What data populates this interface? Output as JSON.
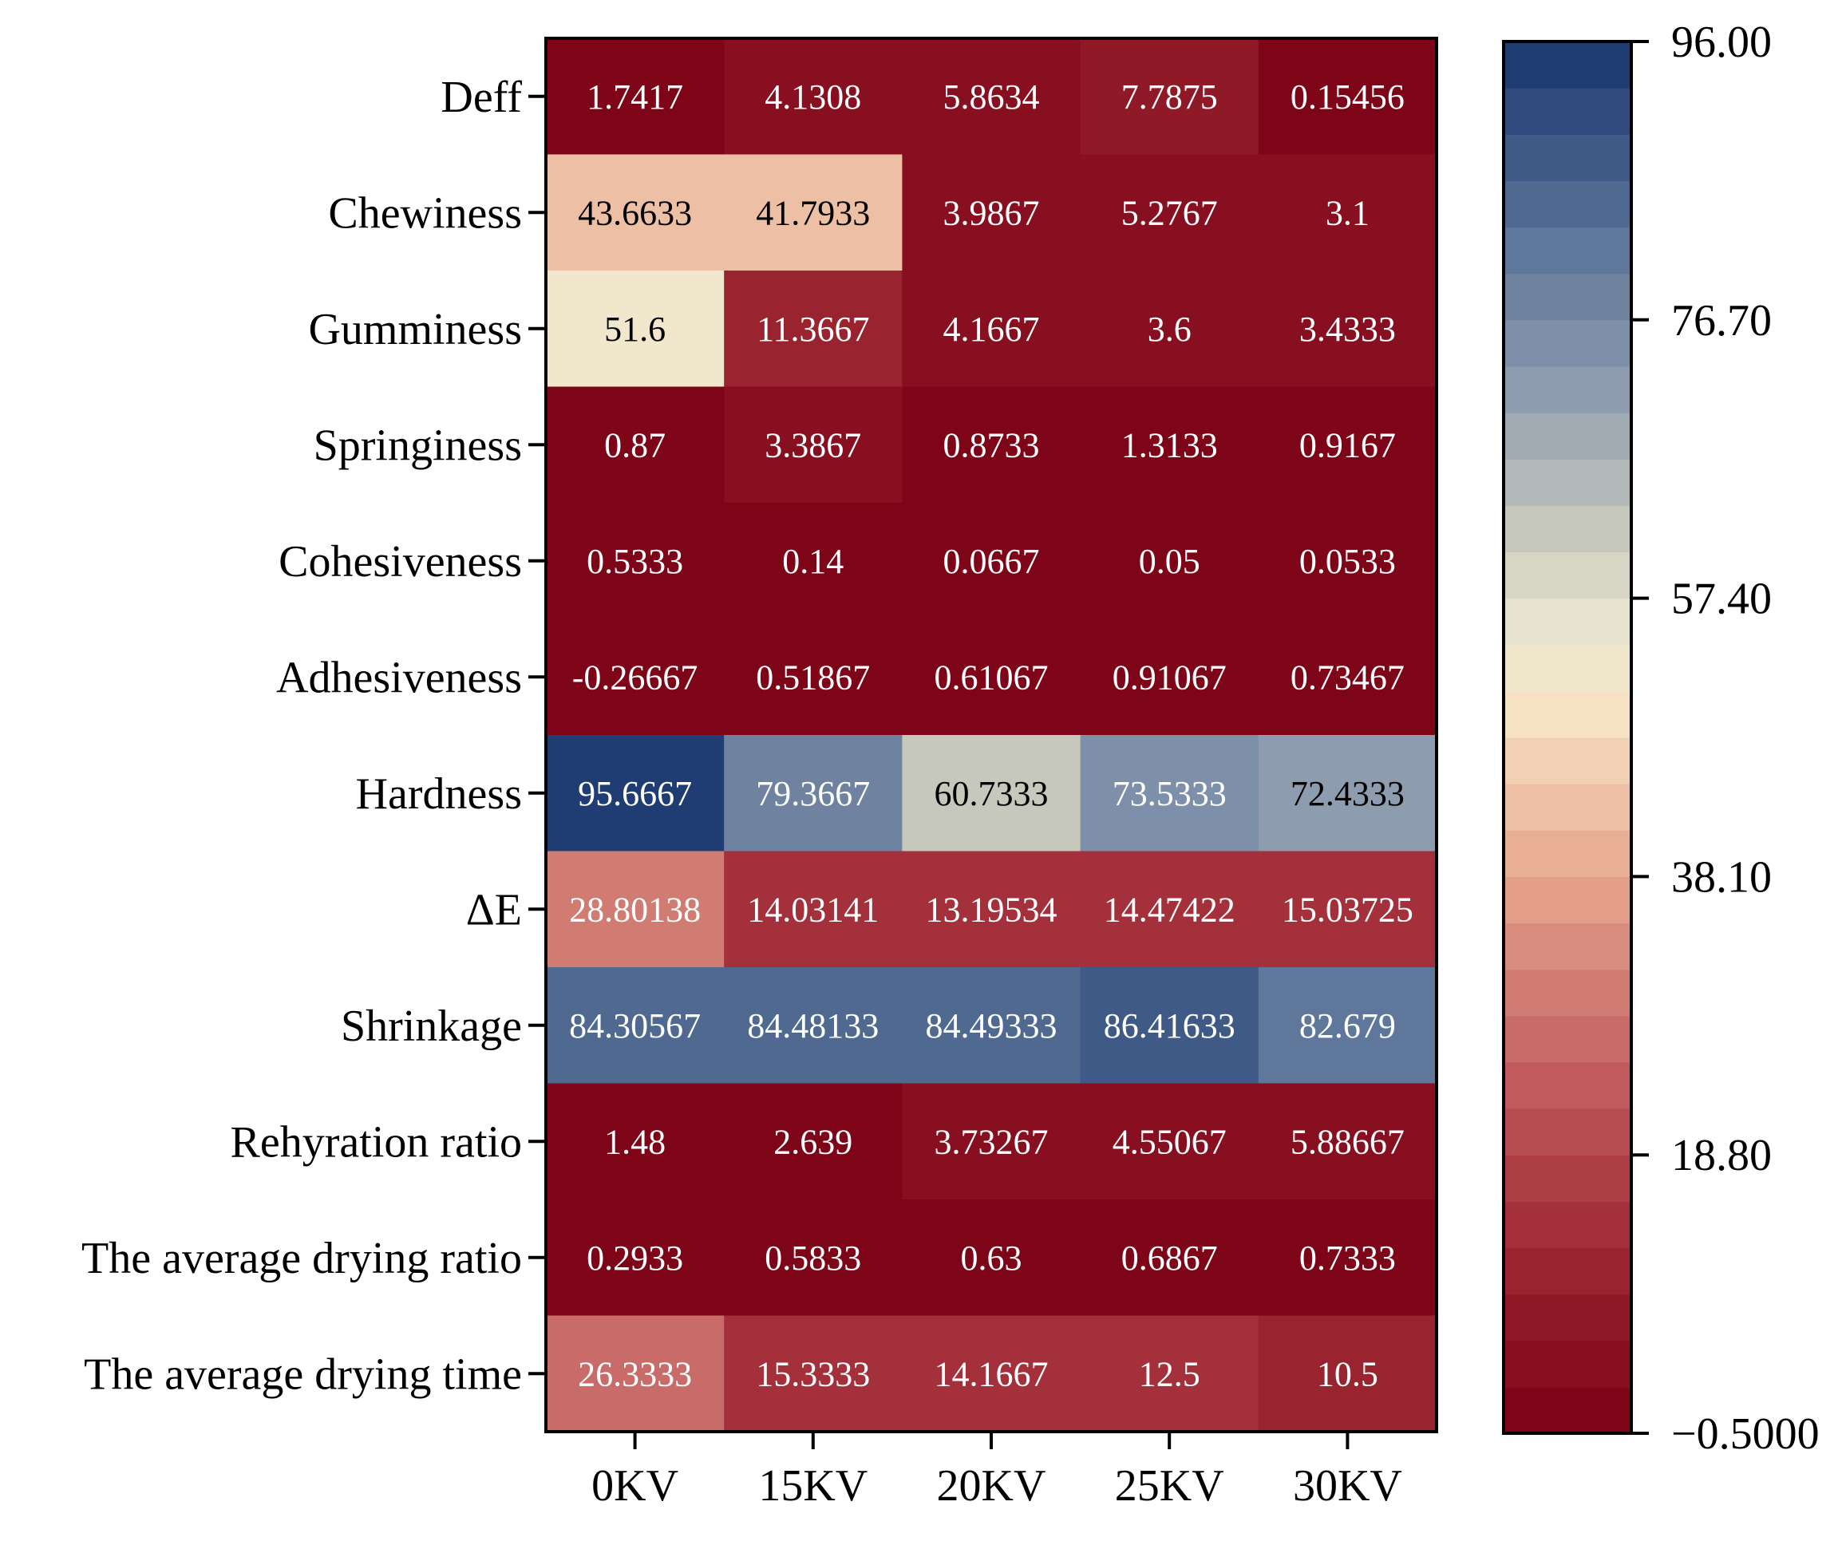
{
  "chart_data": {
    "type": "heatmap",
    "title": "",
    "xlabel": "",
    "ylabel": "",
    "columns": [
      "0KV",
      "15KV",
      "20KV",
      "25KV",
      "30KV"
    ],
    "rows": [
      {
        "label": "Deff",
        "values": [
          1.7417,
          4.1308,
          5.8634,
          7.7875,
          0.15456
        ],
        "display": [
          "1.7417",
          "4.1308",
          "5.8634",
          "7.7875",
          "0.15456"
        ]
      },
      {
        "label": "Chewiness",
        "values": [
          43.6633,
          41.7933,
          3.9867,
          5.2767,
          3.1
        ],
        "display": [
          "43.6633",
          "41.7933",
          "3.9867",
          "5.2767",
          "3.1"
        ]
      },
      {
        "label": "Gumminess",
        "values": [
          51.6,
          11.3667,
          4.1667,
          3.6,
          3.4333
        ],
        "display": [
          "51.6",
          "11.3667",
          "4.1667",
          "3.6",
          "3.4333"
        ]
      },
      {
        "label": "Springiness",
        "values": [
          0.87,
          3.3867,
          0.8733,
          1.3133,
          0.9167
        ],
        "display": [
          "0.87",
          "3.3867",
          "0.8733",
          "1.3133",
          "0.9167"
        ]
      },
      {
        "label": "Cohesiveness",
        "values": [
          0.5333,
          0.14,
          0.0667,
          0.05,
          0.0533
        ],
        "display": [
          "0.5333",
          "0.14",
          "0.0667",
          "0.05",
          "0.0533"
        ]
      },
      {
        "label": "Adhesiveness",
        "values": [
          -0.26667,
          0.51867,
          0.61067,
          0.91067,
          0.73467
        ],
        "display": [
          "-0.26667",
          "0.51867",
          "0.61067",
          "0.91067",
          "0.73467"
        ]
      },
      {
        "label": "Hardness",
        "values": [
          95.6667,
          79.3667,
          60.7333,
          73.5333,
          72.4333
        ],
        "display": [
          "95.6667",
          "79.3667",
          "60.7333",
          "73.5333",
          "72.4333"
        ]
      },
      {
        "label": "ΔE",
        "values": [
          28.80138,
          14.03141,
          13.19534,
          14.47422,
          15.03725
        ],
        "display": [
          "28.80138",
          "14.03141",
          "13.19534",
          "14.47422",
          "15.03725"
        ]
      },
      {
        "label": "Shrinkage",
        "values": [
          84.30567,
          84.48133,
          84.49333,
          86.41633,
          82.679
        ],
        "display": [
          "84.30567",
          "84.48133",
          "84.49333",
          "86.41633",
          "82.679"
        ]
      },
      {
        "label": "Rehyration ratio",
        "values": [
          1.48,
          2.639,
          3.73267,
          4.55067,
          5.88667
        ],
        "display": [
          "1.48",
          "2.639",
          "3.73267",
          "4.55067",
          "5.88667"
        ]
      },
      {
        "label": "The average drying ratio",
        "values": [
          0.2933,
          0.5833,
          0.63,
          0.6867,
          0.7333
        ],
        "display": [
          "0.2933",
          "0.5833",
          "0.63",
          "0.6867",
          "0.7333"
        ]
      },
      {
        "label": "The average drying time",
        "values": [
          26.3333,
          15.3333,
          14.1667,
          12.5,
          10.5
        ],
        "display": [
          "26.3333",
          "15.3333",
          "14.1667",
          "12.5",
          "10.5"
        ]
      }
    ],
    "colorbar": {
      "range": [
        -0.5,
        96.0
      ],
      "levels": 30,
      "ticks": [
        96.0,
        76.7,
        57.4,
        38.1,
        18.8,
        -0.5
      ],
      "tick_labels": [
        "96.00",
        "76.70",
        "57.40",
        "38.10",
        "18.80",
        "−0.5000"
      ]
    },
    "colormap": [
      [
        0.0,
        "#7a0014"
      ],
      [
        0.12,
        "#9a2430"
      ],
      [
        0.25,
        "#c05a5e"
      ],
      [
        0.4,
        "#e6a68e"
      ],
      [
        0.52,
        "#f6e3c4"
      ],
      [
        0.57,
        "#eee9d2"
      ],
      [
        0.65,
        "#c6c8bc"
      ],
      [
        0.75,
        "#8e9cb0"
      ],
      [
        0.87,
        "#566f95"
      ],
      [
        1.0,
        "#17346e"
      ]
    ],
    "cell_text_colors": {
      "dark": "#ffffff",
      "light": "#000000"
    }
  }
}
